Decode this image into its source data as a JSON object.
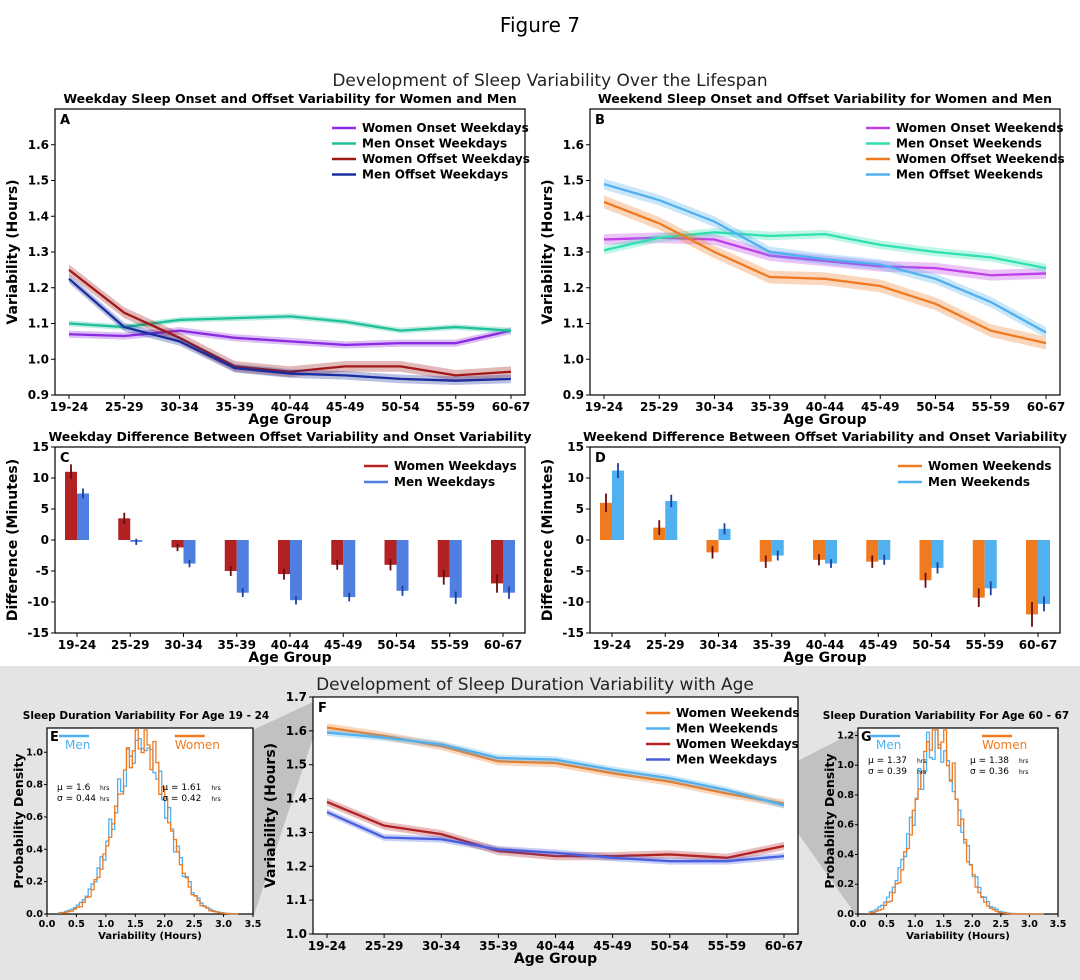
{
  "figure": {
    "title": "Figure 7",
    "top_title": "Development of Sleep Variability Over the Lifespan",
    "bottom_title": "Development of Sleep Duration Variability with Age"
  },
  "colors": {
    "women_onset": "#8a2be2",
    "men_onset": "#20c09a",
    "women_offset_weekday": "#a01818",
    "men_offset_weekday": "#1a2d9e",
    "women_onset_weekend": "#c040e8",
    "men_onset_weekend": "#30e0b0",
    "women_weekend": "#f07a20",
    "men_weekend": "#50b0f0",
    "women_weekday_bar": "#b22222",
    "men_weekday_bar": "#4f7fe0",
    "men_weekday_line": "#4860e0",
    "gray_panel": "#e4e4e4"
  },
  "chart_data": [
    {
      "id": "A",
      "type": "line",
      "title": "Weekday Sleep Onset and Offset Variability for Women and Men",
      "xlabel": "Age Group",
      "ylabel": "Variability (Hours)",
      "categories": [
        "19-24",
        "25-29",
        "30-34",
        "35-39",
        "40-44",
        "45-49",
        "50-54",
        "55-59",
        "60-67"
      ],
      "ylim": [
        0.9,
        1.7
      ],
      "yticks": [
        "0.9",
        "1.0",
        "1.1",
        "1.2",
        "1.3",
        "1.4",
        "1.5",
        "1.6"
      ],
      "series": [
        {
          "name": "Women Onset Weekdays",
          "values": [
            1.07,
            1.065,
            1.08,
            1.06,
            1.05,
            1.04,
            1.045,
            1.045,
            1.08
          ],
          "band": 0.01
        },
        {
          "name": "Men Onset Weekdays",
          "values": [
            1.1,
            1.09,
            1.11,
            1.115,
            1.12,
            1.105,
            1.08,
            1.09,
            1.08
          ],
          "band": 0.008
        },
        {
          "name": "Women Offset Weekdays",
          "values": [
            1.25,
            1.13,
            1.06,
            0.98,
            0.965,
            0.98,
            0.98,
            0.955,
            0.965
          ],
          "band": 0.015
        },
        {
          "name": "Men Offset Weekdays",
          "values": [
            1.225,
            1.09,
            1.05,
            0.975,
            0.96,
            0.955,
            0.945,
            0.94,
            0.945
          ],
          "band": 0.012
        }
      ]
    },
    {
      "id": "B",
      "type": "line",
      "title": "Weekend Sleep Onset and Offset Variability for Women and Men",
      "xlabel": "Age Group",
      "ylabel": "Variability (Hours)",
      "categories": [
        "19-24",
        "25-29",
        "30-34",
        "35-39",
        "40-44",
        "45-49",
        "50-54",
        "55-59",
        "60-67"
      ],
      "ylim": [
        0.9,
        1.7
      ],
      "yticks": [
        "0.9",
        "1.0",
        "1.1",
        "1.2",
        "1.3",
        "1.4",
        "1.5",
        "1.6"
      ],
      "series": [
        {
          "name": "Women Onset Weekends",
          "values": [
            1.335,
            1.34,
            1.335,
            1.29,
            1.275,
            1.26,
            1.255,
            1.235,
            1.24
          ],
          "band": 0.015
        },
        {
          "name": "Men Onset Weekends",
          "values": [
            1.305,
            1.34,
            1.355,
            1.345,
            1.35,
            1.32,
            1.3,
            1.285,
            1.255
          ],
          "band": 0.012
        },
        {
          "name": "Women Offset Weekends",
          "values": [
            1.44,
            1.38,
            1.3,
            1.23,
            1.225,
            1.205,
            1.155,
            1.08,
            1.045
          ],
          "band": 0.018
        },
        {
          "name": "Men Offset Weekends",
          "values": [
            1.49,
            1.445,
            1.385,
            1.3,
            1.28,
            1.265,
            1.225,
            1.16,
            1.075
          ],
          "band": 0.015
        }
      ]
    },
    {
      "id": "C",
      "type": "bar",
      "title": "Weekday Difference Between Offset Variability and Onset Variability",
      "xlabel": "Age Group",
      "ylabel": "Difference (Minutes)",
      "categories": [
        "19-24",
        "25-29",
        "30-34",
        "35-39",
        "40-44",
        "45-49",
        "50-54",
        "55-59",
        "60-67"
      ],
      "ylim": [
        -15,
        15
      ],
      "yticks": [
        "-15",
        "-10",
        "-5",
        "0",
        "5",
        "10",
        "15"
      ],
      "series": [
        {
          "name": "Women Weekdays",
          "values": [
            11.0,
            3.5,
            -1.2,
            -5.0,
            -5.5,
            -4.0,
            -4.0,
            -6.0,
            -7.0
          ],
          "err": [
            1.2,
            0.9,
            0.6,
            0.8,
            0.9,
            0.8,
            0.9,
            1.2,
            1.5
          ]
        },
        {
          "name": "Men Weekdays",
          "values": [
            7.5,
            -0.3,
            -3.8,
            -8.5,
            -9.7,
            -9.2,
            -8.2,
            -9.3,
            -8.5
          ],
          "err": [
            0.8,
            0.5,
            0.6,
            0.7,
            0.7,
            0.7,
            0.8,
            1.0,
            1.0
          ]
        }
      ]
    },
    {
      "id": "D",
      "type": "bar",
      "title": "Weekend Difference Between Offset Variability and Onset Variability",
      "xlabel": "Age Group",
      "ylabel": "Difference (Minutes)",
      "categories": [
        "19-24",
        "25-29",
        "30-34",
        "35-39",
        "40-44",
        "45-49",
        "50-54",
        "55-59",
        "60-67"
      ],
      "ylim": [
        -15,
        15
      ],
      "yticks": [
        "-15",
        "-10",
        "-5",
        "0",
        "5",
        "10",
        "15"
      ],
      "series": [
        {
          "name": "Women Weekends",
          "values": [
            6.0,
            2.0,
            -2.0,
            -3.5,
            -3.2,
            -3.5,
            -6.5,
            -9.3,
            -12.0
          ],
          "err": [
            1.5,
            1.2,
            1.0,
            1.0,
            0.9,
            1.0,
            1.2,
            1.5,
            2.0
          ]
        },
        {
          "name": "Men Weekends",
          "values": [
            11.2,
            6.3,
            1.8,
            -2.5,
            -3.8,
            -3.2,
            -4.5,
            -7.8,
            -10.3
          ],
          "err": [
            1.2,
            1.0,
            0.9,
            0.8,
            0.7,
            0.8,
            0.9,
            1.1,
            1.2
          ]
        }
      ]
    },
    {
      "id": "E",
      "type": "histogram",
      "title": "Sleep Duration Variability For Age 19 - 24",
      "xlabel": "Variability (Hours)",
      "ylabel": "Probability Density",
      "xlim": [
        0,
        3.5
      ],
      "ylim": [
        0,
        1.15
      ],
      "xticks": [
        "0.0",
        "0.5",
        "1.0",
        "1.5",
        "2.0",
        "2.5",
        "3.0",
        "3.5"
      ],
      "yticks": [
        "0.0",
        "0.2",
        "0.4",
        "0.6",
        "0.8",
        "1.0"
      ],
      "series": [
        {
          "name": "Men",
          "mu_label": "μ = 1.6",
          "sigma_label": "σ = 0.44",
          "mu": 1.6,
          "sigma": 0.44
        },
        {
          "name": "Women",
          "mu_label": "μ = 1.61",
          "sigma_label": "σ = 0.42",
          "mu": 1.61,
          "sigma": 0.42
        }
      ],
      "unit": "hrs"
    },
    {
      "id": "F",
      "type": "line",
      "xlabel": "Age Group",
      "ylabel": "Variability (Hours)",
      "categories": [
        "19-24",
        "25-29",
        "30-34",
        "35-39",
        "40-44",
        "45-49",
        "50-54",
        "55-59",
        "60-67"
      ],
      "ylim": [
        1.0,
        1.7
      ],
      "yticks": [
        "1.0",
        "1.1",
        "1.2",
        "1.3",
        "1.4",
        "1.5",
        "1.6",
        "1.7"
      ],
      "series": [
        {
          "name": "Women Weekends",
          "values": [
            1.61,
            1.585,
            1.555,
            1.51,
            1.505,
            1.475,
            1.45,
            1.415,
            1.385
          ],
          "band": 0.012
        },
        {
          "name": "Men Weekends",
          "values": [
            1.595,
            1.58,
            1.56,
            1.52,
            1.515,
            1.485,
            1.46,
            1.425,
            1.38
          ],
          "band": 0.01
        },
        {
          "name": "Women Weekdays",
          "values": [
            1.39,
            1.32,
            1.295,
            1.245,
            1.23,
            1.23,
            1.235,
            1.225,
            1.26
          ],
          "band": 0.012
        },
        {
          "name": "Men Weekdays",
          "values": [
            1.36,
            1.285,
            1.28,
            1.25,
            1.24,
            1.225,
            1.215,
            1.215,
            1.23
          ],
          "band": 0.01
        }
      ]
    },
    {
      "id": "G",
      "type": "histogram",
      "title": "Sleep Duration Variability For Age 60 - 67",
      "xlabel": "Variability (Hours)",
      "ylabel": "Probability Density",
      "xlim": [
        0,
        3.5
      ],
      "ylim": [
        0,
        1.25
      ],
      "xticks": [
        "0.0",
        "0.5",
        "1.0",
        "1.5",
        "2.0",
        "2.5",
        "3.0",
        "3.5"
      ],
      "yticks": [
        "0.0",
        "0.2",
        "0.4",
        "0.6",
        "0.8",
        "1.0",
        "1.2"
      ],
      "series": [
        {
          "name": "Men",
          "mu_label": "μ = 1.37",
          "sigma_label": "σ = 0.39",
          "mu": 1.37,
          "sigma": 0.39
        },
        {
          "name": "Women",
          "mu_label": "μ = 1.38",
          "sigma_label": "σ = 0.36",
          "mu": 1.38,
          "sigma": 0.36
        }
      ],
      "unit": "hrs"
    }
  ]
}
